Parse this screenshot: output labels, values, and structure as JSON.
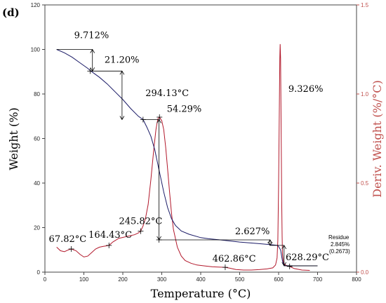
{
  "panel_label": "(d)",
  "chart_data": {
    "type": "line",
    "title": "",
    "xlabel": "Temperature (°C)",
    "ylabel_left": "Weight (%)",
    "ylabel_right": "Deriv. Weight (%/°C)",
    "xlim": [
      0,
      800
    ],
    "ylim_left": [
      0,
      120
    ],
    "ylim_right": [
      0,
      1.5
    ],
    "x_ticks": [
      "0",
      "100",
      "200",
      "300",
      "400",
      "500",
      "600",
      "700",
      "800"
    ],
    "y_left_ticks": [
      "0",
      "20",
      "40",
      "60",
      "80",
      "100",
      "120"
    ],
    "y_right_ticks": [
      "0.0",
      "0.5",
      "1.0",
      "1.5"
    ],
    "grid": false,
    "colors": {
      "weight": "#1a1a66",
      "deriv": "#b2182b",
      "right_axis": "#c0504d",
      "annotation": "#000000"
    },
    "series": [
      {
        "axis": "left",
        "x": [
          30,
          50,
          70,
          90,
          110,
          118,
          140,
          160,
          180,
          200,
          220,
          240,
          252,
          262,
          272,
          282,
          294,
          305,
          315,
          325,
          335,
          350,
          370,
          400,
          420,
          450,
          500,
          550,
          580,
          598,
          605,
          610,
          614,
          620,
          630,
          650,
          700
        ],
        "values": [
          100,
          98.5,
          96.5,
          94,
          91.5,
          90.3,
          87.5,
          84.5,
          81,
          77.5,
          73.5,
          70,
          68.5,
          65,
          61,
          55,
          45,
          36,
          29,
          24,
          21,
          18.5,
          17,
          15.5,
          15,
          14.5,
          13.5,
          12.8,
          12.3,
          12,
          10,
          5,
          3,
          2.9,
          2.85,
          2.845,
          2.845
        ]
      },
      {
        "axis": "right",
        "x": [
          30,
          40,
          50,
          60,
          67.8,
          80,
          90,
          100,
          110,
          120,
          130,
          140,
          150,
          164.4,
          175,
          190,
          200,
          210,
          220,
          230,
          240,
          245.8,
          252,
          258,
          265,
          272,
          280,
          285,
          290,
          294.1,
          300,
          305,
          310,
          315,
          320,
          325,
          330,
          340,
          350,
          360,
          375,
          390,
          410,
          430,
          450,
          462.9,
          475,
          490,
          510,
          530,
          550,
          570,
          585,
          592,
          596,
          598,
          600,
          602,
          603,
          604,
          605,
          606,
          607,
          608,
          609,
          610,
          612,
          615,
          618,
          622,
          628.3,
          640,
          660,
          680
        ],
        "values": [
          0.14,
          0.12,
          0.115,
          0.125,
          0.13,
          0.12,
          0.1,
          0.085,
          0.09,
          0.11,
          0.13,
          0.14,
          0.145,
          0.15,
          0.17,
          0.19,
          0.195,
          0.2,
          0.205,
          0.21,
          0.22,
          0.23,
          0.26,
          0.3,
          0.38,
          0.52,
          0.7,
          0.8,
          0.86,
          0.87,
          0.85,
          0.8,
          0.7,
          0.58,
          0.45,
          0.33,
          0.24,
          0.14,
          0.09,
          0.065,
          0.05,
          0.04,
          0.035,
          0.03,
          0.028,
          0.027,
          0.022,
          0.015,
          0.012,
          0.012,
          0.014,
          0.018,
          0.024,
          0.04,
          0.08,
          0.18,
          0.5,
          0.95,
          1.2,
          1.28,
          1.2,
          0.95,
          0.65,
          0.4,
          0.2,
          0.1,
          0.06,
          0.045,
          0.04,
          0.035,
          0.032,
          0.02,
          0.012,
          0.01
        ]
      }
    ],
    "annotations": {
      "labels": [
        {
          "id": "loss1",
          "text": "9.712%",
          "x": 75,
          "y": 105
        },
        {
          "id": "loss2",
          "text": "21.20%",
          "x": 153,
          "y": 94
        },
        {
          "id": "peak1",
          "text": "294.13°C",
          "x": 258,
          "y": 79
        },
        {
          "id": "loss3",
          "text": "54.29%",
          "x": 313,
          "y": 72
        },
        {
          "id": "peak2",
          "text": "9.326%",
          "x": 625,
          "y": 81
        },
        {
          "id": "t1",
          "text": "67.82°C",
          "x": 10,
          "y": 13.5
        },
        {
          "id": "t2",
          "text": "164.43°C",
          "x": 112,
          "y": 15.5
        },
        {
          "id": "t3",
          "text": "245.82°C",
          "x": 190,
          "y": 21.5
        },
        {
          "id": "loss4",
          "text": "2.627%",
          "x": 488,
          "y": 17
        },
        {
          "id": "t4",
          "text": "462.86°C",
          "x": 430,
          "y": 4.8
        },
        {
          "id": "t5",
          "text": "628.29°C",
          "x": 618,
          "y": 5.3
        }
      ],
      "residue_lines": [
        "Residue",
        "2.845%",
        "(0.2673)"
      ]
    }
  }
}
